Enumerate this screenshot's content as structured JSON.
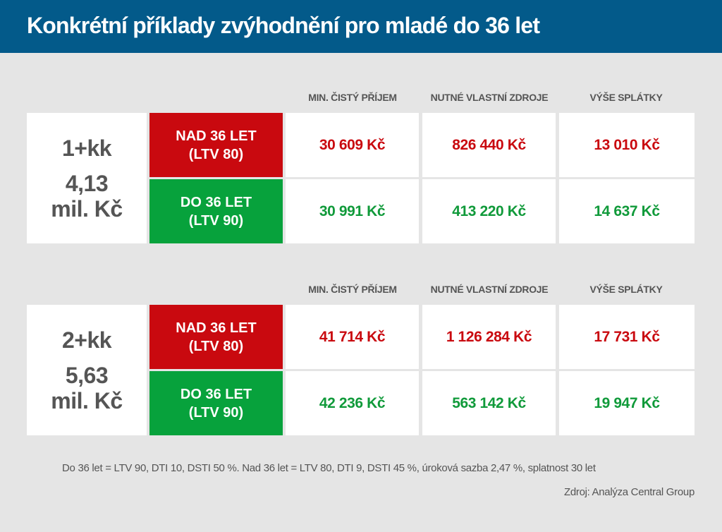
{
  "title": "Konkrétní příklady zvýhodnění pro mladé do 36 let",
  "columns": [
    "MIN. ČISTÝ PŘÍJEM",
    "NUTNÉ VLASTNÍ ZDROJE",
    "VÝŠE SPLÁTKY"
  ],
  "colors": {
    "header": "#035a8a",
    "red": "#c9090f",
    "green": "#07a23c"
  },
  "groups": [
    {
      "size": "1+kk",
      "price_line1": "4,13",
      "price_line2": "mil. Kč",
      "rows": [
        {
          "line1": "NAD 36 LET",
          "line2": "(LTV 80)",
          "values": [
            "30 609 Kč",
            "826 440 Kč",
            "13 010 Kč"
          ]
        },
        {
          "line1": "DO 36 LET",
          "line2": "(LTV 90)",
          "values": [
            "30 991 Kč",
            "413 220 Kč",
            "14 637 Kč"
          ]
        }
      ]
    },
    {
      "size": "2+kk",
      "price_line1": "5,63",
      "price_line2": "mil. Kč",
      "rows": [
        {
          "line1": "NAD 36 LET",
          "line2": "(LTV 80)",
          "values": [
            "41 714 Kč",
            "1 126 284 Kč",
            "17 731 Kč"
          ]
        },
        {
          "line1": "DO 36 LET",
          "line2": "(LTV 90)",
          "values": [
            "42 236 Kč",
            "563 142 Kč",
            "19 947 Kč"
          ]
        }
      ]
    }
  ],
  "footnote": "Do 36 let = LTV 90, DTI 10, DSTI 50 %. Nad 36 let = LTV 80, DTI 9, DSTI 45 %, úroková sazba 2,47 %, splatnost 30 let",
  "source": "Zdroj: Analýza Central Group"
}
